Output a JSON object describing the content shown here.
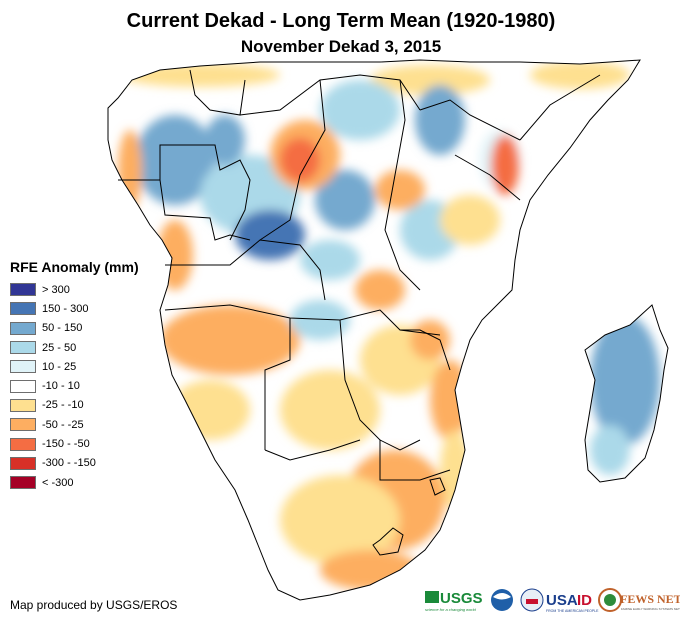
{
  "header": {
    "title": "Current Dekad - Long Term Mean (1920-1980)",
    "subtitle": "November Dekad 3, 2015"
  },
  "legend": {
    "title": "RFE Anomaly (mm)",
    "items": [
      {
        "label": "> 300",
        "color": "#313695"
      },
      {
        "label": "150 - 300",
        "color": "#4575b4"
      },
      {
        "label": "50 - 150",
        "color": "#74a9cf"
      },
      {
        "label": "25 - 50",
        "color": "#abd9e9"
      },
      {
        "label": "10 - 25",
        "color": "#e0f3f8"
      },
      {
        "label": "-10 - 10",
        "color": "#ffffff"
      },
      {
        "label": "-25 - -10",
        "color": "#fee090"
      },
      {
        "label": "-50 - -25",
        "color": "#fdae61"
      },
      {
        "label": "-150 - -50",
        "color": "#f46d43"
      },
      {
        "label": "-300 - -150",
        "color": "#d73027"
      },
      {
        "label": "< -300",
        "color": "#a50026"
      }
    ]
  },
  "footer": {
    "credit": "Map produced by USGS/EROS",
    "logos": [
      {
        "name": "USGS",
        "tagline": "science for a changing world",
        "color": "#1a8a3a"
      },
      {
        "name": "NOAA",
        "color": "#1f5fa8"
      },
      {
        "name": "USAID",
        "tagline": "FROM THE AMERICAN PEOPLE",
        "color": "#1a3e8c",
        "accent": "#c8102e"
      },
      {
        "name": "FEWS NET",
        "tagline": "FAMINE EARLY WARNING SYSTEMS NETWORK",
        "color": "#c0622b"
      }
    ]
  },
  "map": {
    "region": "Central, East and Southern Africa",
    "dominant_patterns": [
      {
        "area": "Central Africa (Gabon, Congo, DRC west)",
        "class": "50 - 150"
      },
      {
        "area": "Central African Republic / northern DRC",
        "class": "-150 - -50"
      },
      {
        "area": "Kenya central",
        "class": "-150 - -50"
      },
      {
        "area": "Angola / Zambia south",
        "class": "-50 - -25"
      },
      {
        "area": "South Africa east",
        "class": "-50 - -25"
      },
      {
        "area": "Mozambique central",
        "class": "-50 - -25"
      },
      {
        "area": "Madagascar",
        "class": "50 - 150"
      },
      {
        "area": "Namibia / Western South Africa",
        "class": "-10 - 10"
      }
    ]
  }
}
